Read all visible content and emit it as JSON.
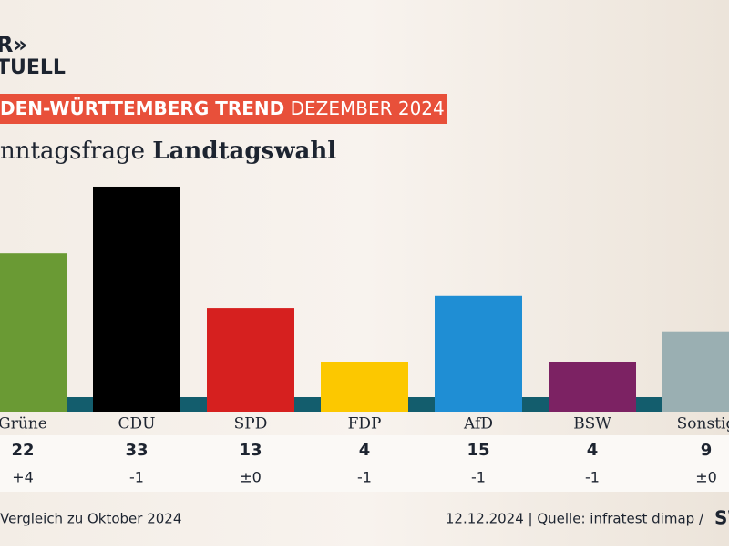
{
  "logo": {
    "line1": "R»",
    "line2": "TUELL"
  },
  "chart_data": {
    "type": "bar",
    "banner": {
      "bold": "DEN-WÜRTTEMBERG TREND",
      "regular": "DEZEMBER 2024"
    },
    "title": {
      "regular": "nntagsfrage",
      "bold": "Landtagswahl"
    },
    "categories": [
      "Grüne",
      "CDU",
      "SPD",
      "FDP",
      "AfD",
      "BSW",
      "Sonstig"
    ],
    "values": [
      22,
      33,
      13,
      4,
      15,
      4,
      9
    ],
    "colors": [
      "#6a9a34",
      "#000000",
      "#d6201f",
      "#fcc800",
      "#1f8ed4",
      "#7c2263",
      "#9aafb2"
    ],
    "changes": {
      "values": [
        4,
        -1,
        0,
        -1,
        -1,
        -1,
        0
      ],
      "value_labels": [
        "+4",
        "-1",
        "±0",
        "-1",
        "-1",
        "-1",
        "±0"
      ]
    },
    "footnote": "Vergleich zu Oktober 2024",
    "source": "12.12.2024 | Quelle: infratest dimap /",
    "brand": "SW"
  }
}
